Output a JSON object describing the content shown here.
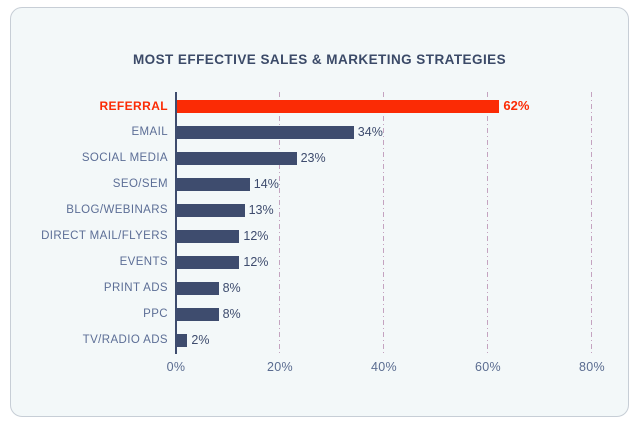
{
  "card": {
    "background": "#f3f8f9",
    "border_color": "#c7ced6"
  },
  "title": "MOST EFFECTIVE SALES & MARKETING STRATEGIES",
  "colors": {
    "accent_red": "#fb2b05",
    "bar_navy": "#3e4c6e",
    "category_label_blue": "#5c6e96",
    "value_label_navy": "#3e4c6e",
    "gridline_mauve": "#c4a3c0",
    "axis_navy": "#3e4c6e",
    "title_navy": "#3b4a68",
    "tick_label_blue": "#5a6c90"
  },
  "chart_data": {
    "type": "bar",
    "orientation": "horizontal",
    "title": "MOST EFFECTIVE SALES & MARKETING STRATEGIES",
    "categories": [
      "REFERRAL",
      "EMAIL",
      "SOCIAL MEDIA",
      "SEO/SEM",
      "BLOG/WEBINARS",
      "DIRECT MAIL/FLYERS",
      "EVENTS",
      "PRINT ADS",
      "PPC",
      "TV/RADIO ADS"
    ],
    "values": [
      62,
      34,
      23,
      14,
      13,
      12,
      12,
      8,
      8,
      2
    ],
    "value_labels": [
      "62%",
      "34%",
      "23%",
      "14%",
      "13%",
      "12%",
      "12%",
      "8%",
      "8%",
      "2%"
    ],
    "highlighted_category": "REFERRAL",
    "xlabel": "",
    "ylabel": "",
    "x_ticks": [
      "0%",
      "20%",
      "40%",
      "60%",
      "80%"
    ],
    "x_tick_values": [
      0,
      20,
      40,
      60,
      80
    ],
    "xlim": [
      0,
      80
    ],
    "grid": "vertical-dash-dot",
    "legend": "none"
  }
}
